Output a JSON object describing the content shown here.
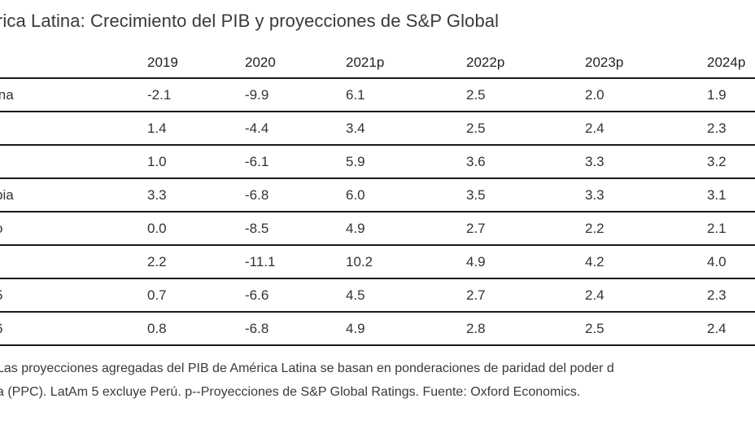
{
  "chart_data": {
    "type": "table",
    "title": "rica Latina: Crecimiento del PIB y proyecciones de S&P Global",
    "columns": [
      "2019",
      "2020",
      "2021p",
      "2022p",
      "2023p",
      "2024p"
    ],
    "rows": [
      {
        "label": "ina",
        "values": [
          "-2.1",
          "-9.9",
          "6.1",
          "2.5",
          "2.0",
          "1.9"
        ]
      },
      {
        "label": "",
        "values": [
          "1.4",
          "-4.4",
          "3.4",
          "2.5",
          "2.4",
          "2.3"
        ]
      },
      {
        "label": "",
        "values": [
          "1.0",
          "-6.1",
          "5.9",
          "3.6",
          "3.3",
          "3.2"
        ]
      },
      {
        "label": "bia",
        "values": [
          "3.3",
          "-6.8",
          "6.0",
          "3.5",
          "3.3",
          "3.1"
        ]
      },
      {
        "label": "o",
        "values": [
          "0.0",
          "-8.5",
          "4.9",
          "2.7",
          "2.2",
          "2.1"
        ]
      },
      {
        "label": "",
        "values": [
          "2.2",
          "-11.1",
          "10.2",
          "4.9",
          "4.2",
          "4.0"
        ]
      },
      {
        "label": "5",
        "values": [
          "0.7",
          "-6.6",
          "4.5",
          "2.7",
          "2.4",
          "2.3"
        ]
      },
      {
        "label": "6",
        "values": [
          "0.8",
          "-6.8",
          "4.9",
          "2.8",
          "2.5",
          "2.4"
        ]
      }
    ],
    "notes": [
      "Las proyecciones agregadas del PIB de América Latina se basan en ponderaciones de paridad del poder d",
      "a (PPC). LatAm 5 excluye Perú. p--Proyecciones de S&P Global Ratings. Fuente: Oxford Economics."
    ]
  }
}
